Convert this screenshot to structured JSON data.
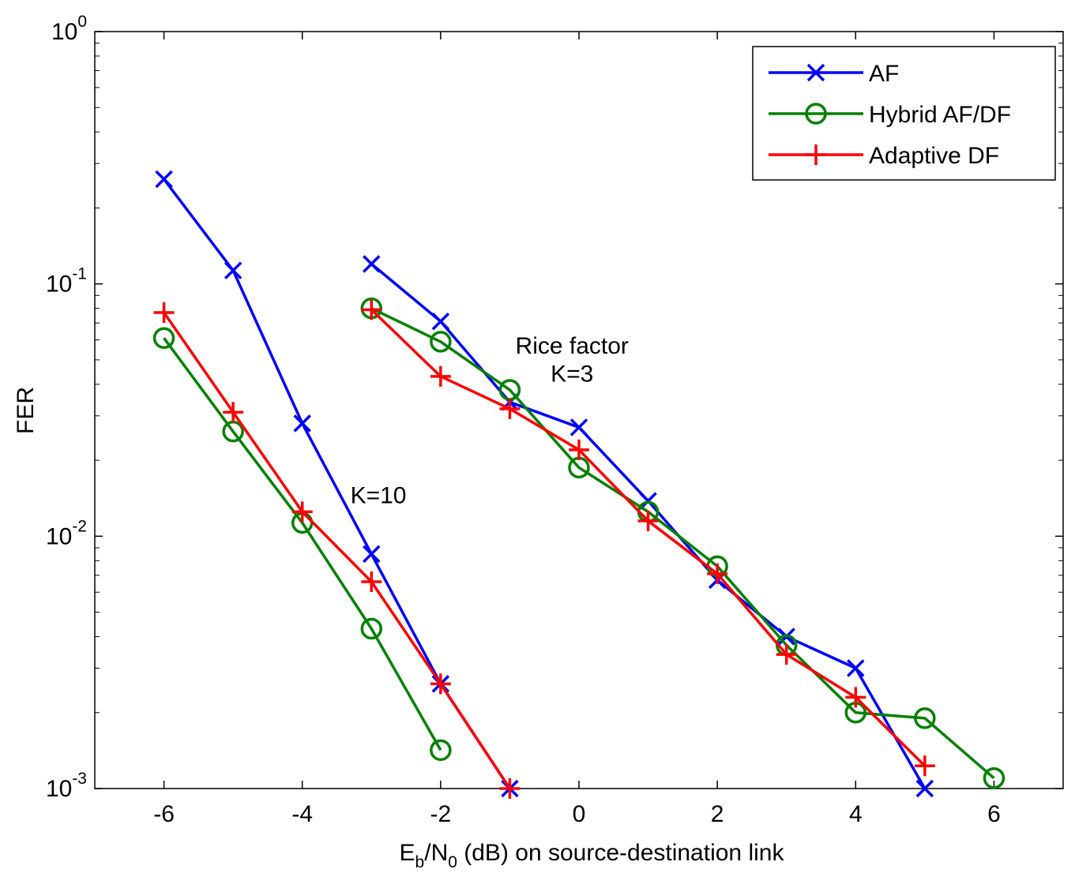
{
  "chart_data": {
    "type": "line",
    "xlabel": {
      "main": "E",
      "sub1": "b",
      "mid": "/N",
      "sub2": "0",
      "rest": " (dB) on source-destination link"
    },
    "ylabel": "FER",
    "xlim": [
      -7,
      7
    ],
    "ylim": [
      0.001,
      1
    ],
    "yscale": "log",
    "xticks": [
      -6,
      -4,
      -2,
      0,
      2,
      4,
      6
    ],
    "yticks": [
      {
        "value": 1,
        "base": "10",
        "exp": "0"
      },
      {
        "value": 0.1,
        "base": "10",
        "exp": "-1"
      },
      {
        "value": 0.01,
        "base": "10",
        "exp": "-2"
      },
      {
        "value": 0.001,
        "base": "10",
        "exp": "-3"
      }
    ],
    "grid": false,
    "legend_position": "top-right",
    "series": [
      {
        "name": "AF",
        "color": "#0000ff",
        "marker": "x",
        "x": [
          -6,
          -5,
          -4,
          -3,
          -2,
          -1
        ],
        "y": [
          0.26,
          0.113,
          0.028,
          0.0085,
          0.0026,
          0.001
        ]
      },
      {
        "name": "Hybrid AF/DF",
        "color": "#008000",
        "marker": "o",
        "x": [
          -6,
          -5,
          -4,
          -3,
          -2
        ],
        "y": [
          0.061,
          0.026,
          0.0113,
          0.0043,
          0.00142
        ]
      },
      {
        "name": "Adaptive DF",
        "color": "#ff0000",
        "marker": "+",
        "x": [
          -6,
          -5,
          -4,
          -3,
          -2,
          -1
        ],
        "y": [
          0.077,
          0.031,
          0.0125,
          0.0066,
          0.0026,
          0.001
        ]
      },
      {
        "name": "AF",
        "color": "#0000ff",
        "marker": "x",
        "x": [
          -3,
          -2,
          -1,
          0,
          1,
          2,
          3,
          4,
          5
        ],
        "y": [
          0.12,
          0.071,
          0.034,
          0.027,
          0.0138,
          0.0067,
          0.004,
          0.003,
          0.001
        ]
      },
      {
        "name": "Hybrid AF/DF",
        "color": "#008000",
        "marker": "o",
        "x": [
          -3,
          -2,
          -1,
          0,
          1,
          2,
          3,
          4,
          5,
          6
        ],
        "y": [
          0.08,
          0.059,
          0.038,
          0.0187,
          0.0125,
          0.0076,
          0.0037,
          0.002,
          0.0019,
          0.0011
        ]
      },
      {
        "name": "Adaptive DF",
        "color": "#ff0000",
        "marker": "+",
        "x": [
          -3,
          -2,
          -1,
          0,
          1,
          2,
          3,
          4,
          5
        ],
        "y": [
          0.079,
          0.043,
          0.032,
          0.022,
          0.0115,
          0.0071,
          0.0034,
          0.0023,
          0.00123
        ]
      }
    ],
    "legend": [
      {
        "label": "AF",
        "color": "#0000ff",
        "marker": "x"
      },
      {
        "label": "Hybrid AF/DF",
        "color": "#008000",
        "marker": "o"
      },
      {
        "label": "Adaptive DF",
        "color": "#ff0000",
        "marker": "+"
      }
    ],
    "annotations": [
      {
        "text": "Rice factor",
        "x": -0.1,
        "y": 0.053
      },
      {
        "text": "K=3",
        "x": -0.1,
        "y": 0.041
      },
      {
        "text": "K=10",
        "x": -2.9,
        "y": 0.0135
      }
    ]
  }
}
